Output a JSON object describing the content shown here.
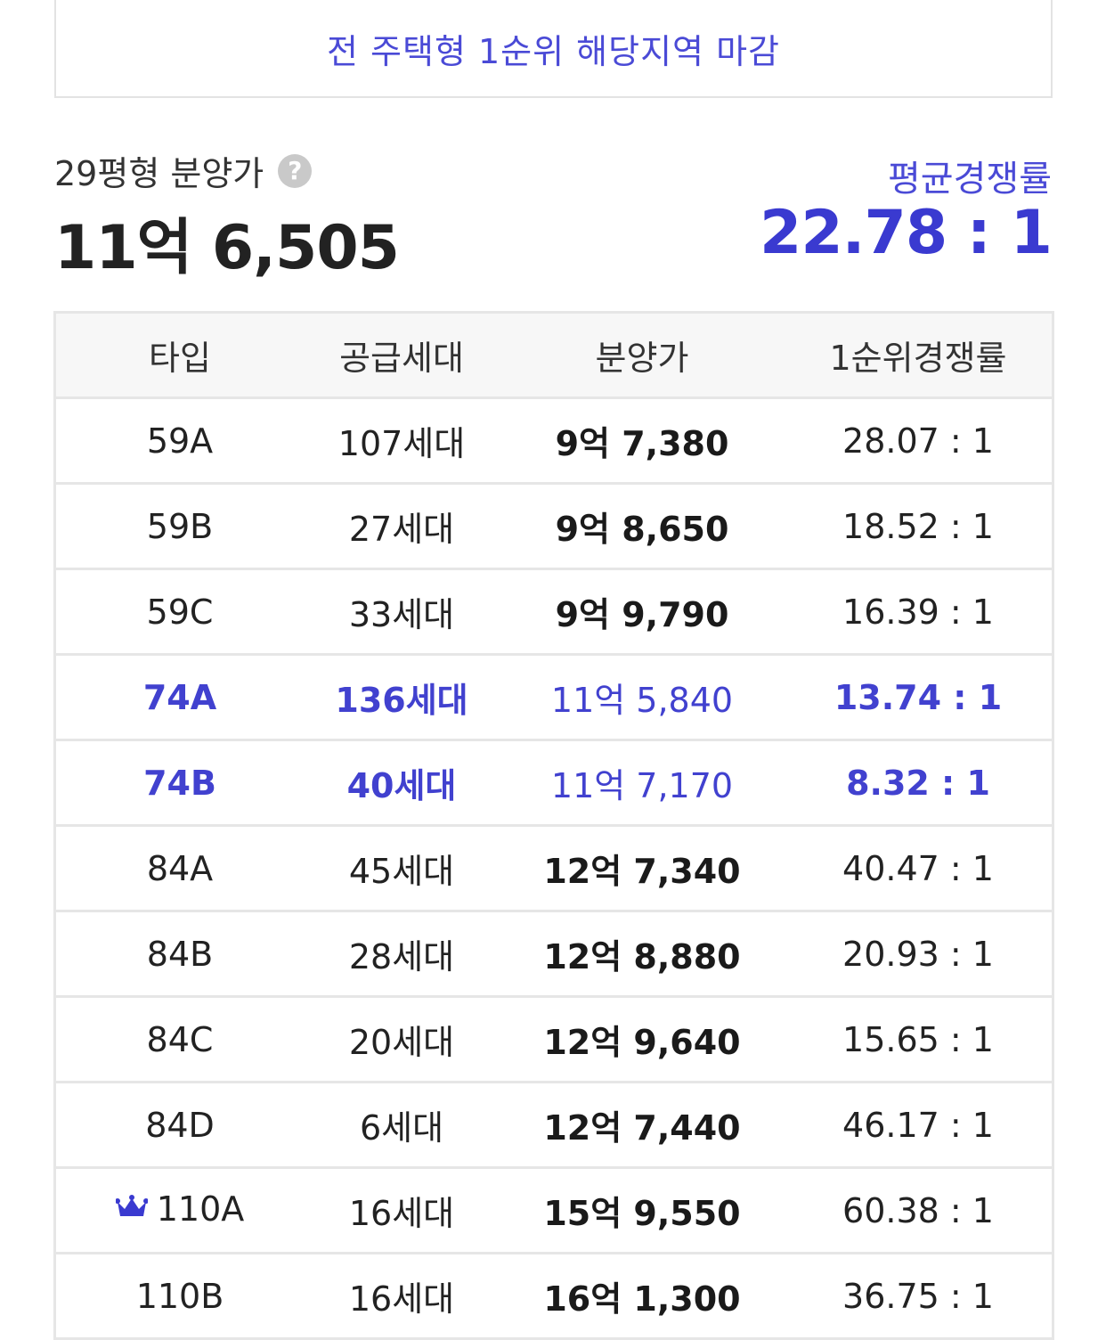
{
  "banner": {
    "text": "전 주택형 1순위 해당지역 마감"
  },
  "summary": {
    "price_label": "29평형 분양가",
    "help_icon": "question-mark-icon",
    "price_value": "11억 6,505",
    "rate_label": "평균경쟁률",
    "rate_value": "22.78 : 1"
  },
  "colors": {
    "accent": "#4a4ad6",
    "text": "#222222",
    "border": "#e6e6e6"
  },
  "table": {
    "headers": [
      "타입",
      "공급세대",
      "분양가",
      "1순위경쟁률"
    ],
    "rows": [
      {
        "type": "59A",
        "units": "107세대",
        "price": "9억 7,380",
        "rate": "28.07 : 1"
      },
      {
        "type": "59B",
        "units": "27세대",
        "price": "9억 8,650",
        "rate": "18.52 : 1"
      },
      {
        "type": "59C",
        "units": "33세대",
        "price": "9억 9,790",
        "rate": "16.39 : 1"
      },
      {
        "type": "74A",
        "units": "136세대",
        "price": "11억 5,840",
        "rate": "13.74 : 1",
        "highlight": true
      },
      {
        "type": "74B",
        "units": "40세대",
        "price": "11억 7,170",
        "rate": "8.32 : 1",
        "highlight": true
      },
      {
        "type": "84A",
        "units": "45세대",
        "price": "12억 7,340",
        "rate": "40.47 : 1"
      },
      {
        "type": "84B",
        "units": "28세대",
        "price": "12억 8,880",
        "rate": "20.93 : 1"
      },
      {
        "type": "84C",
        "units": "20세대",
        "price": "12억 9,640",
        "rate": "15.65 : 1"
      },
      {
        "type": "84D",
        "units": "6세대",
        "price": "12억 7,440",
        "rate": "46.17 : 1"
      },
      {
        "type": "110A",
        "units": "16세대",
        "price": "15억 9,550",
        "rate": "60.38 : 1",
        "icon": "crown-icon"
      },
      {
        "type": "110B",
        "units": "16세대",
        "price": "16억 1,300",
        "rate": "36.75 : 1"
      }
    ]
  }
}
